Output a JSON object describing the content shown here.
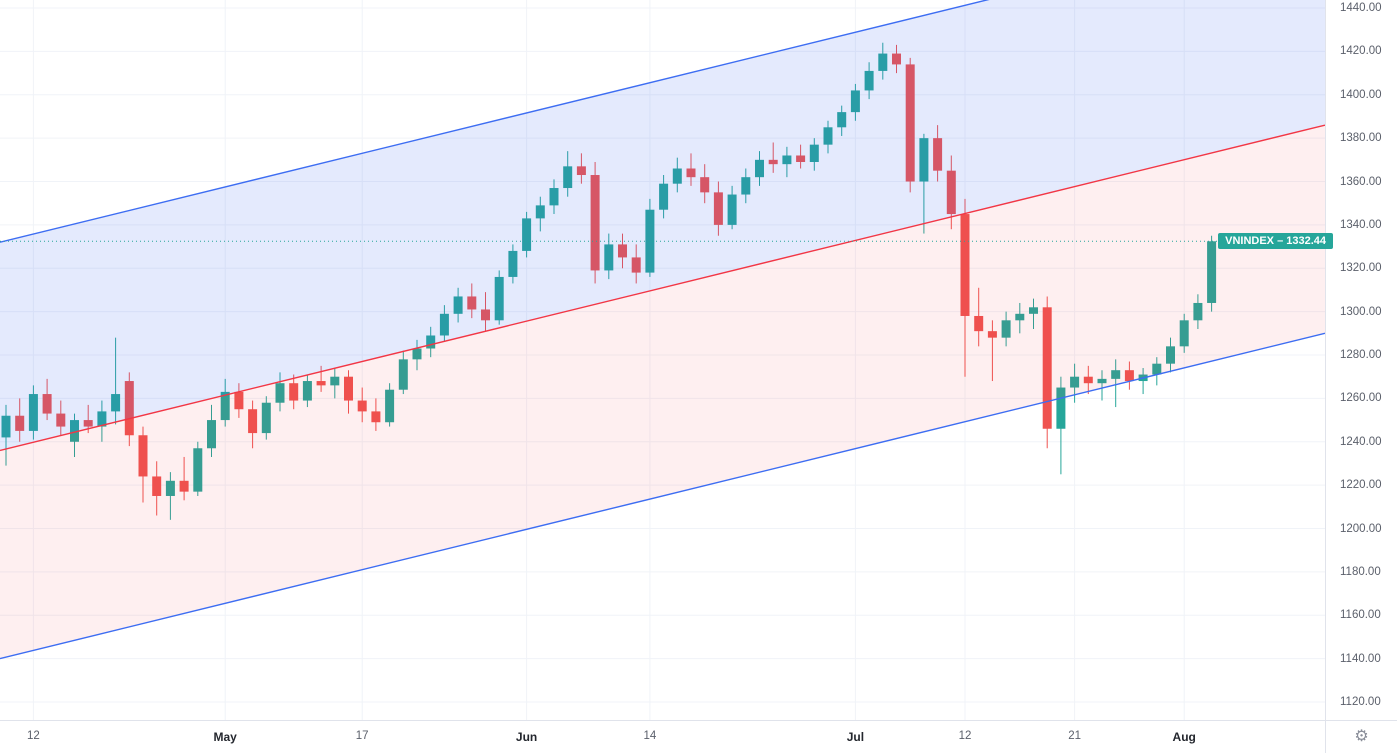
{
  "price_label": {
    "text": "VNINDEX – 1332.44",
    "symbol": "VNINDEX",
    "value": "1332.44",
    "background": "#26a69a"
  },
  "controls": {
    "gear_icon": "⚙"
  },
  "price_axis": {
    "labels": [
      "1440.00",
      "1420.00",
      "1400.00",
      "1380.00",
      "1360.00",
      "1340.00",
      "1320.00",
      "1300.00",
      "1280.00",
      "1260.00",
      "1240.00",
      "1220.00",
      "1200.00",
      "1180.00",
      "1160.00",
      "1140.00",
      "1120.00"
    ]
  },
  "chart_data": {
    "type": "candlestick",
    "symbol": "VNINDEX",
    "last_price": 1332.44,
    "ylim": [
      1111.7,
      1443.7
    ],
    "grid_price_step": 20,
    "x_start": 6,
    "x_step": 13.7,
    "candle_width": 9,
    "x_axis_labels": [
      {
        "label": "12",
        "i": 2,
        "month": false
      },
      {
        "label": "May",
        "i": 16,
        "month": true
      },
      {
        "label": "17",
        "i": 26,
        "month": false
      },
      {
        "label": "Jun",
        "i": 38,
        "month": true
      },
      {
        "label": "14",
        "i": 47,
        "month": false
      },
      {
        "label": "Jul",
        "i": 62,
        "month": true
      },
      {
        "label": "12",
        "i": 70,
        "month": false
      },
      {
        "label": "21",
        "i": 78,
        "month": false
      },
      {
        "label": "Aug",
        "i": 86,
        "month": true
      }
    ],
    "candles": [
      [
        1242,
        1257,
        1229,
        1252
      ],
      [
        1252,
        1260,
        1240,
        1245
      ],
      [
        1245,
        1266,
        1241,
        1262
      ],
      [
        1262,
        1269,
        1250,
        1253
      ],
      [
        1253,
        1259,
        1243,
        1247
      ],
      [
        1240,
        1253,
        1233,
        1250
      ],
      [
        1250,
        1257,
        1244,
        1247
      ],
      [
        1247,
        1259,
        1240,
        1254
      ],
      [
        1254,
        1288,
        1248,
        1262
      ],
      [
        1268,
        1272,
        1238,
        1243
      ],
      [
        1243,
        1247,
        1212,
        1224
      ],
      [
        1224,
        1231,
        1206,
        1215
      ],
      [
        1215,
        1226,
        1204,
        1222
      ],
      [
        1222,
        1233,
        1213,
        1217
      ],
      [
        1217,
        1240,
        1215,
        1237
      ],
      [
        1237,
        1257,
        1233,
        1250
      ],
      [
        1250,
        1269,
        1247,
        1263
      ],
      [
        1263,
        1267,
        1251,
        1255
      ],
      [
        1255,
        1259,
        1237,
        1244
      ],
      [
        1244,
        1261,
        1241,
        1258
      ],
      [
        1258,
        1272,
        1254,
        1267
      ],
      [
        1267,
        1271,
        1255,
        1259
      ],
      [
        1259,
        1271,
        1256,
        1268
      ],
      [
        1268,
        1275,
        1263,
        1266
      ],
      [
        1266,
        1274,
        1260,
        1270
      ],
      [
        1270,
        1273,
        1253,
        1259
      ],
      [
        1259,
        1265,
        1249,
        1254
      ],
      [
        1254,
        1260,
        1245,
        1249
      ],
      [
        1249,
        1267,
        1247,
        1264
      ],
      [
        1264,
        1282,
        1262,
        1278
      ],
      [
        1278,
        1287,
        1273,
        1283
      ],
      [
        1283,
        1293,
        1279,
        1289
      ],
      [
        1289,
        1303,
        1286,
        1299
      ],
      [
        1299,
        1311,
        1295,
        1307
      ],
      [
        1307,
        1313,
        1297,
        1301
      ],
      [
        1301,
        1309,
        1291,
        1296
      ],
      [
        1296,
        1319,
        1294,
        1316
      ],
      [
        1316,
        1331,
        1313,
        1328
      ],
      [
        1328,
        1346,
        1325,
        1343
      ],
      [
        1343,
        1353,
        1337,
        1349
      ],
      [
        1349,
        1361,
        1345,
        1357
      ],
      [
        1357,
        1374,
        1353,
        1367
      ],
      [
        1367,
        1373,
        1359,
        1363
      ],
      [
        1363,
        1369,
        1313,
        1319
      ],
      [
        1319,
        1336,
        1315,
        1331
      ],
      [
        1331,
        1336,
        1320,
        1325
      ],
      [
        1325,
        1331,
        1313,
        1318
      ],
      [
        1318,
        1352,
        1316,
        1347
      ],
      [
        1347,
        1363,
        1343,
        1359
      ],
      [
        1359,
        1371,
        1355,
        1366
      ],
      [
        1366,
        1373,
        1358,
        1362
      ],
      [
        1362,
        1368,
        1350,
        1355
      ],
      [
        1355,
        1360,
        1335,
        1340
      ],
      [
        1340,
        1358,
        1338,
        1354
      ],
      [
        1354,
        1366,
        1350,
        1362
      ],
      [
        1362,
        1374,
        1358,
        1370
      ],
      [
        1370,
        1378,
        1364,
        1368
      ],
      [
        1368,
        1376,
        1362,
        1372
      ],
      [
        1372,
        1377,
        1366,
        1369
      ],
      [
        1369,
        1380,
        1365,
        1377
      ],
      [
        1377,
        1388,
        1373,
        1385
      ],
      [
        1385,
        1395,
        1381,
        1392
      ],
      [
        1392,
        1405,
        1388,
        1402
      ],
      [
        1402,
        1415,
        1398,
        1411
      ],
      [
        1411,
        1424,
        1407,
        1419
      ],
      [
        1419,
        1423,
        1410,
        1414
      ],
      [
        1414,
        1417,
        1355,
        1360
      ],
      [
        1360,
        1382,
        1336,
        1380
      ],
      [
        1380,
        1386,
        1360,
        1365
      ],
      [
        1365,
        1372,
        1338,
        1345
      ],
      [
        1345,
        1352,
        1270,
        1298
      ],
      [
        1298,
        1311,
        1284,
        1291
      ],
      [
        1291,
        1296,
        1268,
        1288
      ],
      [
        1288,
        1300,
        1284,
        1296
      ],
      [
        1296,
        1304,
        1290,
        1299
      ],
      [
        1299,
        1306,
        1292,
        1302
      ],
      [
        1302,
        1307,
        1237,
        1246
      ],
      [
        1246,
        1270,
        1225,
        1265
      ],
      [
        1265,
        1276,
        1258,
        1270
      ],
      [
        1270,
        1275,
        1262,
        1267
      ],
      [
        1267,
        1273,
        1259,
        1269
      ],
      [
        1269,
        1278,
        1256,
        1273
      ],
      [
        1273,
        1277,
        1264,
        1268
      ],
      [
        1268,
        1274,
        1262,
        1271
      ],
      [
        1271,
        1279,
        1266,
        1276
      ],
      [
        1276,
        1288,
        1272,
        1284
      ],
      [
        1284,
        1299,
        1281,
        1296
      ],
      [
        1296,
        1308,
        1292,
        1304
      ],
      [
        1304,
        1335,
        1300,
        1332.44
      ]
    ],
    "channel": {
      "type": "parallel-channel",
      "median_price_left": 1236,
      "median_price_right": 1386,
      "half_width": 96,
      "line_color_outer": "#3d6df2",
      "line_color_median": "#f23645",
      "fill_upper": "rgba(61,109,242,0.14)",
      "fill_lower": "rgba(242,54,69,0.08)"
    },
    "colors": {
      "up": "#26a69a",
      "down": "#ef5350",
      "grid": "#f0f3f8",
      "axis_text": "#5a5f6a",
      "last_price_line": "#26a69a"
    }
  }
}
